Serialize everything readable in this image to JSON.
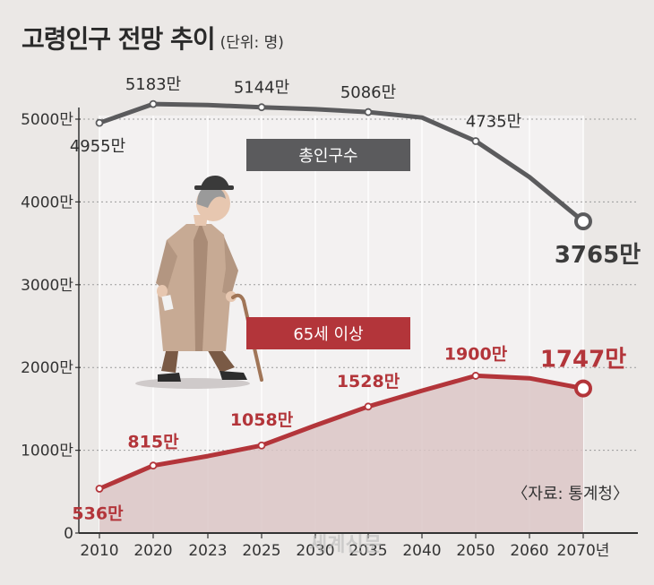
{
  "header": {
    "title": "고령인구 전망 추이",
    "unit": "(단위: 명)"
  },
  "source": "〈자료: 통계청〉",
  "watermark": "세계신문",
  "colors": {
    "total_line": "#5b5b5d",
    "elderly_line": "#b3353a",
    "elderly_area": "#dac6c5",
    "highlight_band": "#f3f1f1",
    "background": "#ebe8e6"
  },
  "chart_data": {
    "type": "line",
    "x": [
      "2010",
      "2020",
      "2023",
      "2025",
      "2030",
      "2035",
      "2040",
      "2050",
      "2060",
      "2070"
    ],
    "x_tick_labels": [
      "2010",
      "2020",
      "2023",
      "2025",
      "2030",
      "2035",
      "2040",
      "2050",
      "2060",
      "2070년"
    ],
    "y_tick_labels": [
      "0",
      "1000만",
      "2000만",
      "3000만",
      "4000만",
      "5000만"
    ],
    "ylim": [
      0,
      50000000
    ],
    "series": [
      {
        "name": "총인구수",
        "values": [
          49550000,
          51830000,
          51700000,
          51440000,
          51200000,
          50860000,
          50200000,
          47350000,
          43000000,
          37650000
        ],
        "labels": [
          "4955만",
          "5183만",
          null,
          "5144만",
          null,
          "5086만",
          null,
          "4735만",
          null,
          "3765만"
        ]
      },
      {
        "name": "65세 이상",
        "values": [
          5360000,
          8150000,
          9300000,
          10580000,
          13000000,
          15280000,
          17200000,
          19000000,
          18700000,
          17470000
        ],
        "labels": [
          "536만",
          "815만",
          null,
          "1058만",
          null,
          "1528만",
          null,
          "1900만",
          null,
          "1747만"
        ]
      }
    ],
    "grid": true
  }
}
